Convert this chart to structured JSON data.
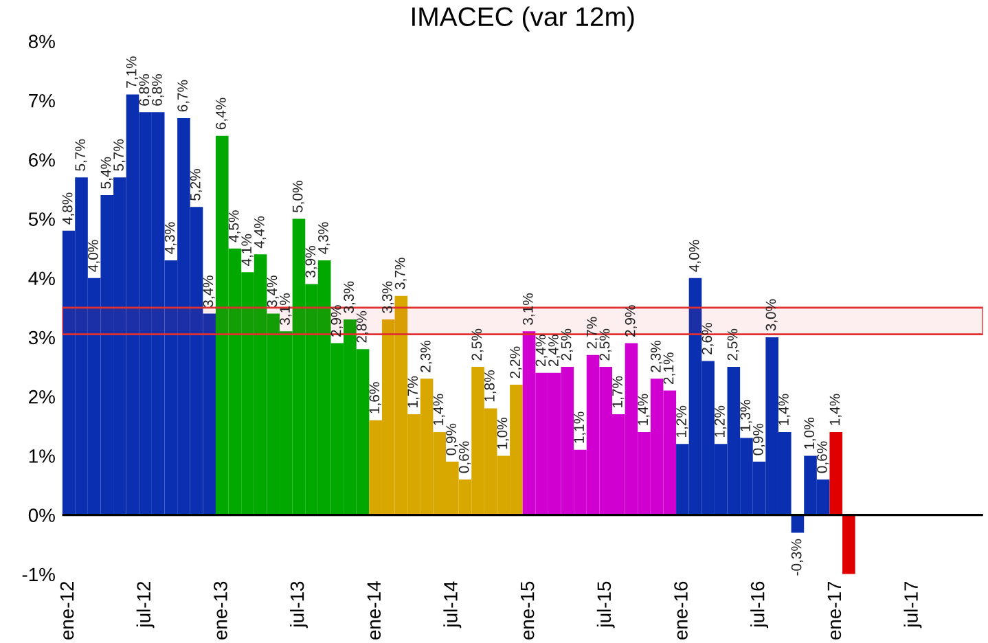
{
  "chart_data": {
    "type": "bar",
    "title": "IMACEC (var 12m)",
    "categories": [
      "ene-12",
      null,
      null,
      null,
      null,
      null,
      "jul-12",
      null,
      null,
      null,
      null,
      null,
      "ene-13",
      null,
      null,
      null,
      null,
      null,
      "jul-13",
      null,
      null,
      null,
      null,
      null,
      "ene-14",
      null,
      null,
      null,
      null,
      null,
      "jul-14",
      null,
      null,
      null,
      null,
      null,
      "ene-15",
      null,
      null,
      null,
      null,
      null,
      "jul-15",
      null,
      null,
      null,
      null,
      null,
      "ene-16",
      null,
      null,
      null,
      null,
      null,
      "jul-16",
      null,
      null,
      null,
      null,
      null,
      "ene-17",
      null,
      null,
      null,
      null,
      null,
      "jul-17",
      null,
      null,
      null,
      null,
      null
    ],
    "values": [
      4.8,
      5.7,
      4.0,
      5.4,
      5.7,
      7.1,
      6.8,
      6.8,
      4.3,
      6.7,
      5.2,
      3.4,
      6.4,
      4.5,
      4.1,
      4.4,
      3.4,
      3.1,
      5.0,
      3.9,
      4.3,
      2.9,
      3.3,
      2.8,
      1.6,
      3.3,
      3.7,
      1.7,
      2.3,
      1.4,
      0.9,
      0.6,
      2.5,
      1.8,
      1.0,
      2.2,
      3.1,
      2.4,
      2.4,
      2.5,
      1.1,
      2.7,
      2.5,
      1.7,
      2.9,
      1.4,
      2.3,
      2.1,
      1.2,
      4.0,
      2.6,
      1.2,
      2.5,
      1.3,
      0.9,
      3.0,
      1.4,
      -0.3,
      1.0,
      0.6,
      1.4,
      -1.0,
      null,
      null,
      null,
      null,
      null,
      null,
      null,
      null,
      null,
      null
    ],
    "value_labels": [
      "4,8%",
      "5,7%",
      "4,0%",
      "5,4%",
      "5,7%",
      "7,1%",
      "6,8%",
      "6,8%",
      "4,3%",
      "6,7%",
      "5,2%",
      "3,4%",
      "6,4%",
      "4,5%",
      "4,1%",
      "4,4%",
      "3,4%",
      "3,1%",
      "5,0%",
      "3,9%",
      "4,3%",
      "2,9%",
      "3,3%",
      "2,8%",
      "1,6%",
      "3,3%",
      "3,7%",
      "1,7%",
      "2,3%",
      "1,4%",
      "0,9%",
      "0,6%",
      "2,5%",
      "1,8%",
      "1,0%",
      "2,2%",
      "3,1%",
      "2,4%",
      "2,4%",
      "2,5%",
      "1,1%",
      "2,7%",
      "2,5%",
      "1,7%",
      "2,9%",
      "1,4%",
      "2,3%",
      "2,1%",
      "1,2%",
      "4,0%",
      "2,6%",
      "1,2%",
      "2,5%",
      "1,3%",
      "0,9%",
      "3,0%",
      "1,4%",
      "-0,3%",
      "1,0%",
      "0,6%",
      "1,4%",
      null,
      null,
      null,
      null,
      null,
      null,
      null,
      null,
      null,
      null,
      null
    ],
    "colors": [
      "#0a2fb0",
      "#0a2fb0",
      "#0a2fb0",
      "#0a2fb0",
      "#0a2fb0",
      "#0a2fb0",
      "#0a2fb0",
      "#0a2fb0",
      "#0a2fb0",
      "#0a2fb0",
      "#0a2fb0",
      "#0a2fb0",
      "#00a800",
      "#00a800",
      "#00a800",
      "#00a800",
      "#00a800",
      "#00a800",
      "#00a800",
      "#00a800",
      "#00a800",
      "#00a800",
      "#00a800",
      "#00a800",
      "#d8a800",
      "#d8a800",
      "#d8a800",
      "#d8a800",
      "#d8a800",
      "#d8a800",
      "#d8a800",
      "#d8a800",
      "#d8a800",
      "#d8a800",
      "#d8a800",
      "#d8a800",
      "#d000d0",
      "#d000d0",
      "#d000d0",
      "#d000d0",
      "#d000d0",
      "#d000d0",
      "#d000d0",
      "#d000d0",
      "#d000d0",
      "#d000d0",
      "#d000d0",
      "#d000d0",
      "#0a2fb0",
      "#0a2fb0",
      "#0a2fb0",
      "#0a2fb0",
      "#0a2fb0",
      "#0a2fb0",
      "#0a2fb0",
      "#0a2fb0",
      "#0a2fb0",
      "#0a2fb0",
      "#0a2fb0",
      "#0a2fb0",
      "#e00000",
      "#e00000",
      "#e00000",
      "#e00000",
      "#e00000",
      "#e00000",
      "#e00000",
      "#e00000",
      "#e00000",
      "#e00000",
      "#e00000",
      "#e00000"
    ],
    "ylim": [
      -1,
      8
    ],
    "yticks": [
      {
        "value": -1,
        "label": "-1%"
      },
      {
        "value": 0,
        "label": "0%"
      },
      {
        "value": 1,
        "label": "1%"
      },
      {
        "value": 2,
        "label": "2%"
      },
      {
        "value": 3,
        "label": "3%"
      },
      {
        "value": 4,
        "label": "4%"
      },
      {
        "value": 5,
        "label": "5%"
      },
      {
        "value": 6,
        "label": "6%"
      },
      {
        "value": 7,
        "label": "7%"
      },
      {
        "value": 8,
        "label": "8%"
      }
    ],
    "bands": [
      {
        "axis": "y",
        "from": 3.05,
        "to": 3.5,
        "color": "#e03030"
      }
    ],
    "legend": false
  }
}
